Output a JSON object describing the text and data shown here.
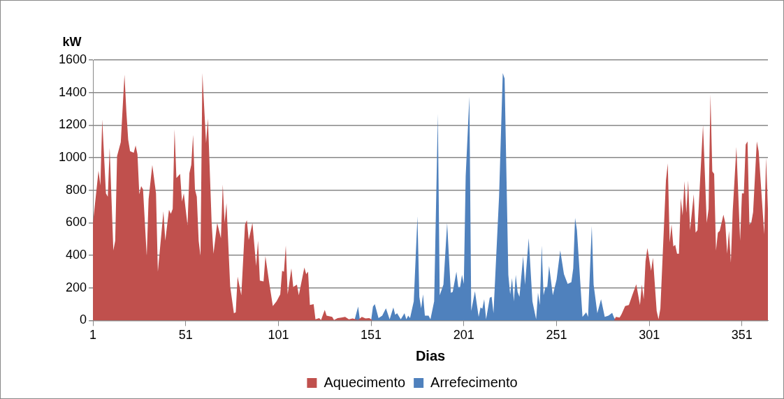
{
  "chart_data": {
    "type": "area",
    "xlabel": "Dias",
    "ylabel": "kW",
    "xlim": [
      1,
      365
    ],
    "xticks": [
      1,
      51,
      101,
      151,
      201,
      251,
      301,
      351
    ],
    "ylim": [
      0,
      1600
    ],
    "yticks": [
      0,
      200,
      400,
      600,
      800,
      1000,
      1200,
      1400,
      1600
    ],
    "grid": "y",
    "legend": "bottom",
    "series": [
      {
        "name": "Arrefecimento",
        "color": "#4f81bd",
        "x": [
          142,
          144,
          145,
          151,
          152,
          153,
          155,
          157,
          159,
          161,
          163,
          164,
          165,
          167,
          169,
          170,
          171,
          172,
          174,
          176,
          177,
          178,
          179,
          180,
          182,
          183,
          185,
          187,
          188,
          190,
          192,
          194,
          195,
          197,
          198,
          199,
          200,
          201,
          202,
          204,
          205,
          207,
          209,
          210,
          211,
          212,
          213,
          215,
          216,
          217,
          220,
          222,
          223,
          225,
          226,
          227,
          228,
          229,
          230,
          231,
          233,
          234,
          236,
          238,
          240,
          241,
          242,
          243,
          244,
          245,
          246,
          247,
          249,
          251,
          253,
          255,
          257,
          259,
          260,
          261,
          262,
          265,
          267,
          268,
          270,
          271,
          273,
          275,
          277,
          279,
          281,
          282,
          283
        ],
        "values": [
          0,
          85,
          0,
          0,
          85,
          100,
          15,
          30,
          75,
          7,
          80,
          35,
          45,
          7,
          45,
          7,
          30,
          15,
          117,
          640,
          145,
          75,
          160,
          30,
          30,
          7,
          117,
          1270,
          155,
          220,
          600,
          170,
          175,
          300,
          205,
          205,
          280,
          225,
          885,
          1375,
          58,
          180,
          22,
          80,
          72,
          130,
          7,
          140,
          145,
          45,
          760,
          1520,
          1485,
          280,
          160,
          260,
          117,
          280,
          175,
          145,
          395,
          220,
          505,
          117,
          7,
          170,
          95,
          460,
          155,
          205,
          205,
          335,
          155,
          250,
          430,
          285,
          225,
          235,
          320,
          630,
          555,
          22,
          50,
          22,
          580,
          220,
          45,
          130,
          22,
          30,
          47,
          18,
          0
        ]
      },
      {
        "name": "Aquecimento",
        "color": "#c0504d",
        "x": [
          1,
          4,
          5,
          6,
          8,
          9,
          10,
          11,
          12,
          13,
          14,
          16,
          18,
          19,
          20,
          21,
          23,
          24,
          25,
          26,
          27,
          28,
          30,
          31,
          33,
          35,
          36,
          39,
          40,
          42,
          43,
          44,
          45,
          46,
          48,
          49,
          50,
          52,
          53,
          54,
          55,
          56,
          57,
          58,
          59,
          60,
          62,
          63,
          65,
          66,
          68,
          70,
          71,
          72,
          73,
          75,
          77,
          78,
          79,
          81,
          83,
          84,
          85,
          87,
          89,
          90,
          91,
          93,
          94,
          96,
          98,
          100,
          102,
          103,
          104,
          105,
          106,
          108,
          109,
          111,
          112,
          115,
          116,
          117,
          118,
          120,
          121,
          123,
          124,
          126,
          127,
          130,
          131,
          133,
          135,
          137,
          139,
          141,
          144,
          146,
          148,
          150,
          152,
          217,
          282,
          283,
          285,
          286,
          288,
          290,
          292,
          294,
          296,
          297,
          298,
          299,
          300,
          302,
          303,
          305,
          306,
          307,
          310,
          311,
          312,
          313,
          314,
          315,
          316,
          317,
          318,
          319,
          320,
          321,
          322,
          323,
          325,
          326,
          327,
          330,
          332,
          333,
          334,
          335,
          336,
          337,
          338,
          339,
          341,
          342,
          343,
          344,
          345,
          346,
          348,
          350,
          351,
          352,
          353,
          354,
          355,
          356,
          357,
          359,
          360,
          363,
          364,
          365
        ],
        "values": [
          600,
          920,
          830,
          1235,
          780,
          760,
          1060,
          745,
          430,
          490,
          1010,
          1095,
          1510,
          1285,
          1110,
          1040,
          1030,
          1075,
          1020,
          775,
          825,
          805,
          395,
          745,
          955,
          780,
          300,
          670,
          490,
          680,
          655,
          685,
          1175,
          875,
          900,
          730,
          780,
          585,
          905,
          955,
          1140,
          805,
          760,
          490,
          395,
          1520,
          1090,
          1240,
          600,
          410,
          600,
          505,
          835,
          600,
          720,
          210,
          45,
          50,
          270,
          155,
          590,
          615,
          495,
          600,
          335,
          490,
          245,
          240,
          395,
          235,
          88,
          117,
          160,
          305,
          300,
          460,
          160,
          320,
          205,
          220,
          155,
          325,
          285,
          300,
          95,
          100,
          7,
          15,
          3,
          65,
          30,
          22,
          3,
          15,
          18,
          22,
          7,
          12,
          3,
          22,
          12,
          15,
          0,
          null,
          0,
          22,
          18,
          37,
          88,
          95,
          160,
          222,
          95,
          220,
          130,
          365,
          445,
          305,
          385,
          58,
          7,
          73,
          860,
          965,
          480,
          590,
          455,
          465,
          410,
          410,
          750,
          645,
          855,
          660,
          860,
          555,
          775,
          540,
          555,
          1200,
          600,
          685,
          1390,
          915,
          900,
          430,
          540,
          550,
          650,
          600,
          410,
          550,
          355,
          670,
          1065,
          490,
          780,
          780,
          1080,
          1100,
          590,
          600,
          665,
          1100,
          1040,
          530,
          1000,
          685
        ]
      }
    ]
  }
}
